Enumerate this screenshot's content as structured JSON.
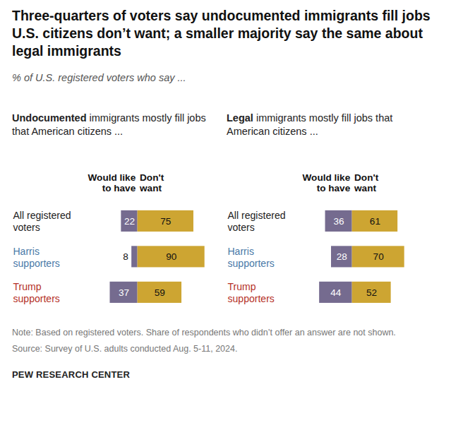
{
  "title": "Three-quarters of voters say undocumented immigrants fill jobs U.S. citizens don’t want; a smaller majority say the same about legal immigrants",
  "subtitle": "% of U.S. registered voters who say ...",
  "note": "Note: Based on registered voters. Share of respondents who didn’t offer an answer are not shown.",
  "source": "Source: Survey of U.S. adults conducted Aug. 5-11, 2024.",
  "credit": "PEW RESEARCH CENTER",
  "chart_data": [
    {
      "type": "bar",
      "orientation": "horizontal",
      "stacked": true,
      "data_labels": true,
      "tick_labels": "y",
      "title": "Undocumented immigrants mostly fill jobs that American citizens ...",
      "categories": [
        "All registered voters",
        "Harris supporters",
        "Trump supporters"
      ],
      "series": [
        {
          "name": "Would like to have",
          "color": "#756b8f",
          "values": [
            22,
            8,
            37
          ]
        },
        {
          "name": "Don't want",
          "color": "#cda532",
          "values": [
            75,
            90,
            59
          ]
        }
      ]
    },
    {
      "type": "bar",
      "orientation": "horizontal",
      "stacked": true,
      "data_labels": true,
      "tick_labels": "y",
      "title": "Legal immigrants mostly fill jobs that American citizens ...",
      "categories": [
        "All registered voters",
        "Harris supporters",
        "Trump supporters"
      ],
      "series": [
        {
          "name": "Would like to have",
          "color": "#756b8f",
          "values": [
            36,
            28,
            44
          ]
        },
        {
          "name": "Don't want",
          "color": "#cda532",
          "values": [
            61,
            70,
            52
          ]
        }
      ]
    }
  ]
}
